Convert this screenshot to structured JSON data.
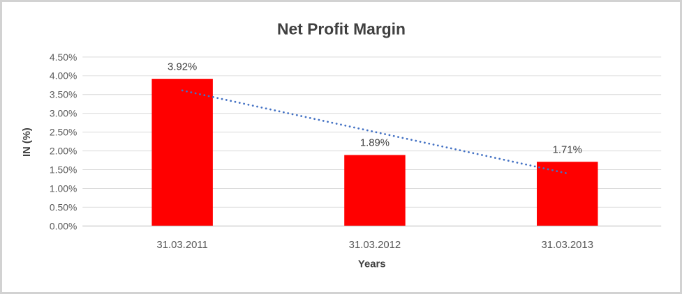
{
  "chart_data": {
    "type": "bar",
    "title": "Net Profit Margin",
    "xlabel": "Years",
    "ylabel": "IN (%)",
    "categories": [
      "31.03.2011",
      "31.03.2012",
      "31.03.2013"
    ],
    "values": [
      3.92,
      1.89,
      1.71
    ],
    "value_labels": [
      "3.92%",
      "1.89%",
      "1.71%"
    ],
    "ylim": [
      0,
      4.5
    ],
    "ytick_step": 0.5,
    "ytick_labels": [
      "0.00%",
      "0.50%",
      "1.00%",
      "1.50%",
      "2.00%",
      "2.50%",
      "3.00%",
      "3.50%",
      "4.00%",
      "4.50%"
    ],
    "grid": true,
    "legend": "none",
    "bar_color": "#ff0000",
    "text_color": "#404040",
    "tick_color": "#595959",
    "gridline_color": "#d9d9d9",
    "trendline": {
      "type": "linear",
      "style": "dotted",
      "color": "#4472c4",
      "start_value": 3.61,
      "end_value": 1.4
    }
  }
}
